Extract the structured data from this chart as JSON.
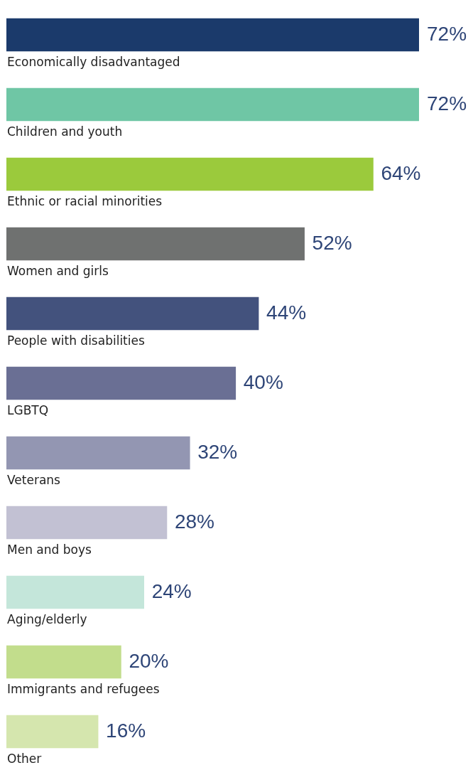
{
  "chart_data": {
    "type": "bar",
    "orientation": "horizontal",
    "categories": [
      "Economically disadvantaged",
      "Children and youth",
      "Ethnic or racial minorities",
      "Women and girls",
      "People with disabilities",
      "LGBTQ",
      "Veterans",
      "Men and boys",
      "Aging/elderly",
      "Immigrants and refugees",
      "Other"
    ],
    "values": [
      72,
      72,
      64,
      52,
      44,
      40,
      32,
      28,
      24,
      20,
      16
    ],
    "colors": [
      "#1b3a6b",
      "#6fc6a5",
      "#9bca3c",
      "#6f7170",
      "#43527d",
      "#6a6f94",
      "#9396b2",
      "#c2c1d3",
      "#c4e6da",
      "#c2dd8c",
      "#d5e6ae"
    ],
    "value_labels": [
      "72%",
      "72%",
      "64%",
      "52%",
      "44%",
      "40%",
      "32%",
      "28%",
      "24%",
      "20%",
      "16%"
    ],
    "tick_labels": false
  }
}
